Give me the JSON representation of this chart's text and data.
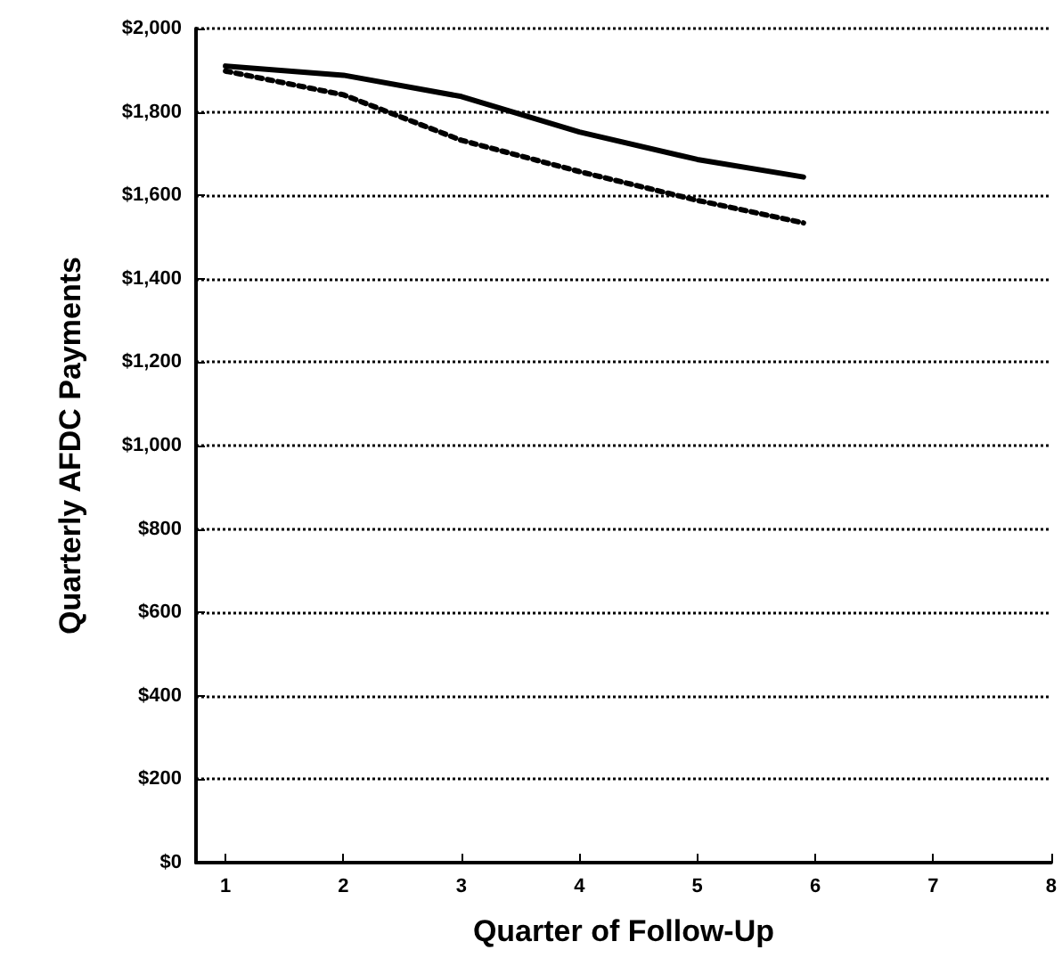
{
  "chart_data": {
    "type": "line",
    "xlabel": "Quarter of Follow-Up",
    "ylabel": "Quarterly AFDC Payments",
    "xlim": [
      0.75,
      8
    ],
    "xticks": [
      1,
      2,
      3,
      4,
      5,
      6,
      7,
      8
    ],
    "ylim": [
      0,
      2000
    ],
    "yticks": [
      {
        "value": 0,
        "label": "$0"
      },
      {
        "value": 200,
        "label": "$200"
      },
      {
        "value": 400,
        "label": "$400"
      },
      {
        "value": 600,
        "label": "$600"
      },
      {
        "value": 800,
        "label": "$800"
      },
      {
        "value": 1000,
        "label": "$1,000"
      },
      {
        "value": 1200,
        "label": "$1,200"
      },
      {
        "value": 1400,
        "label": "$1,400"
      },
      {
        "value": 1600,
        "label": "$1,600"
      },
      {
        "value": 1800,
        "label": "$1,800"
      },
      {
        "value": 2000,
        "label": "$2,000"
      }
    ],
    "grid": "y",
    "marker": "none",
    "series": [
      {
        "color": "#000000",
        "line_style": "solid",
        "x": [
          1,
          2,
          3,
          4,
          5,
          5.9
        ],
        "values": [
          1910,
          1888,
          1837,
          1752,
          1686,
          1644
        ]
      },
      {
        "color": "#000000",
        "line_style": "dotted",
        "x": [
          1,
          2,
          3,
          4,
          5,
          5.9
        ],
        "values": [
          1898,
          1841,
          1732,
          1657,
          1588,
          1534
        ]
      }
    ]
  }
}
